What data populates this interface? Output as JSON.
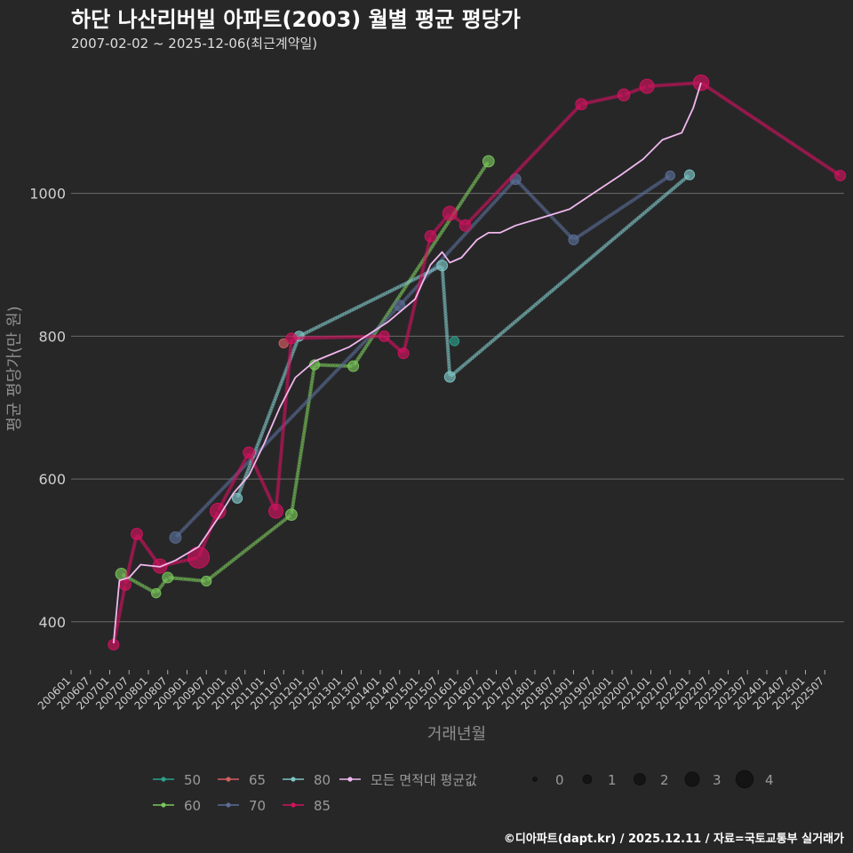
{
  "colors": {
    "background": "#272728",
    "grid": "#6a6a6a",
    "text": "#ffffff",
    "subtext": "#dddddd",
    "axis_text": "#cfcfcf",
    "axis_title": "#8e8e8e",
    "legend_text": "#9a9a9a",
    "s50": "#2ca089",
    "s60": "#7ac65a",
    "s65": "#d65f5f",
    "s70": "#5a6e96",
    "s80": "#7fc6c6",
    "s85": "#d1135e",
    "avg": "#f0b8ee"
  },
  "chart_data": {
    "type": "line",
    "title": "하단 나산리버빌 아파트(2003) 월별 평균 평당가",
    "subtitle": "2007-02-02 ~ 2025-12-06(최근계약일)",
    "xlabel": "거래년월",
    "ylabel": "평균 평당가(만 원)",
    "ylim": [
      335,
      1190
    ],
    "xlim": [
      2006.0,
      2026.0
    ],
    "yticks": [
      400,
      600,
      800,
      1000
    ],
    "xticks": [
      "200601",
      "200607",
      "200701",
      "200707",
      "200801",
      "200807",
      "200901",
      "200907",
      "201001",
      "201007",
      "201101",
      "201107",
      "201201",
      "201207",
      "201301",
      "201307",
      "201401",
      "201407",
      "201501",
      "201507",
      "201601",
      "201607",
      "201701",
      "201707",
      "201801",
      "201807",
      "201901",
      "201907",
      "202001",
      "202007",
      "202101",
      "202107",
      "202201",
      "202207",
      "202301",
      "202307",
      "202401",
      "202407",
      "202501",
      "202507"
    ],
    "credit": "©디아파트(dapt.kr) / 2025.12.11 / 자료=국토교통부 실거래가",
    "series": [
      {
        "name": "50",
        "color_key": "s50",
        "points": [
          [
            2015.92,
            793,
            1.3
          ]
        ]
      },
      {
        "name": "60",
        "color_key": "s60",
        "points": [
          [
            2007.3,
            467,
            1.6
          ],
          [
            2008.2,
            440,
            1.3
          ],
          [
            2008.5,
            462,
            1.5
          ],
          [
            2009.5,
            457,
            1.4
          ],
          [
            2011.7,
            550,
            1.6
          ],
          [
            2012.3,
            760,
            1.4
          ],
          [
            2013.3,
            758,
            1.5
          ],
          [
            2016.8,
            1045,
            1.6
          ]
        ]
      },
      {
        "name": "65",
        "color_key": "s65",
        "points": [
          [
            2011.5,
            790,
            1.3
          ]
        ]
      },
      {
        "name": "70",
        "color_key": "s70",
        "points": [
          [
            2008.7,
            518,
            1.6
          ],
          [
            2014.5,
            843,
            1.5
          ],
          [
            2017.5,
            1020,
            1.5
          ],
          [
            2019.0,
            935,
            1.4
          ],
          [
            2021.5,
            1025,
            1.3
          ]
        ]
      },
      {
        "name": "80",
        "color_key": "s80",
        "points": [
          [
            2010.3,
            573,
            1.4
          ],
          [
            2011.9,
            800,
            1.4
          ],
          [
            2015.6,
            899,
            1.5
          ],
          [
            2015.8,
            743,
            1.5
          ],
          [
            2022.0,
            1026,
            1.4
          ]
        ]
      },
      {
        "name": "85",
        "color_key": "s85",
        "points": [
          [
            2007.1,
            368,
            1.5
          ],
          [
            2007.4,
            452,
            1.6
          ],
          [
            2007.7,
            523,
            1.6
          ],
          [
            2008.3,
            478,
            2.0
          ],
          [
            2009.3,
            490,
            3.0
          ],
          [
            2009.8,
            555,
            2.2
          ],
          [
            2010.6,
            637,
            1.6
          ],
          [
            2011.3,
            555,
            2.0
          ],
          [
            2011.7,
            797,
            1.5
          ],
          [
            2014.1,
            800,
            1.5
          ],
          [
            2014.6,
            776,
            1.5
          ],
          [
            2015.3,
            940,
            1.6
          ],
          [
            2015.8,
            972,
            2.0
          ],
          [
            2016.2,
            955,
            1.6
          ],
          [
            2019.2,
            1125,
            1.6
          ],
          [
            2020.3,
            1138,
            1.7
          ],
          [
            2020.9,
            1150,
            2.0
          ],
          [
            2022.3,
            1155,
            2.2
          ],
          [
            2025.9,
            1025,
            1.5
          ]
        ]
      }
    ],
    "average_line": {
      "name": "모든 면적대 평균값",
      "color_key": "avg",
      "points": [
        [
          2007.1,
          370
        ],
        [
          2007.25,
          458
        ],
        [
          2007.5,
          462
        ],
        [
          2007.8,
          480
        ],
        [
          2008.3,
          477
        ],
        [
          2008.7,
          486
        ],
        [
          2009.3,
          505
        ],
        [
          2009.8,
          545
        ],
        [
          2010.2,
          580
        ],
        [
          2010.6,
          605
        ],
        [
          2011.0,
          650
        ],
        [
          2011.4,
          700
        ],
        [
          2011.8,
          742
        ],
        [
          2012.3,
          765
        ],
        [
          2013.2,
          785
        ],
        [
          2014.2,
          820
        ],
        [
          2014.9,
          852
        ],
        [
          2015.3,
          900
        ],
        [
          2015.6,
          918
        ],
        [
          2015.8,
          903
        ],
        [
          2016.1,
          910
        ],
        [
          2016.5,
          935
        ],
        [
          2016.8,
          945
        ],
        [
          2017.1,
          945
        ],
        [
          2017.5,
          955
        ],
        [
          2018.3,
          968
        ],
        [
          2018.9,
          978
        ],
        [
          2019.5,
          1000
        ],
        [
          2020.2,
          1025
        ],
        [
          2020.8,
          1048
        ],
        [
          2021.3,
          1075
        ],
        [
          2021.8,
          1085
        ],
        [
          2022.1,
          1120
        ],
        [
          2022.3,
          1155
        ]
      ]
    },
    "size_legend": {
      "values": [
        "0",
        "1",
        "2",
        "3",
        "4"
      ],
      "sizes": [
        1.0,
        1.6,
        2.0,
        2.4,
        2.8
      ]
    },
    "legend_rows": [
      [
        {
          "name": "50",
          "color_key": "s50"
        },
        {
          "name": "65",
          "color_key": "s65"
        },
        {
          "name": "80",
          "color_key": "s80"
        },
        {
          "name": "모든 면적대 평균값",
          "color_key": "avg"
        }
      ],
      [
        {
          "name": "60",
          "color_key": "s60"
        },
        {
          "name": "70",
          "color_key": "s70"
        },
        {
          "name": "85",
          "color_key": "s85"
        }
      ]
    ]
  }
}
